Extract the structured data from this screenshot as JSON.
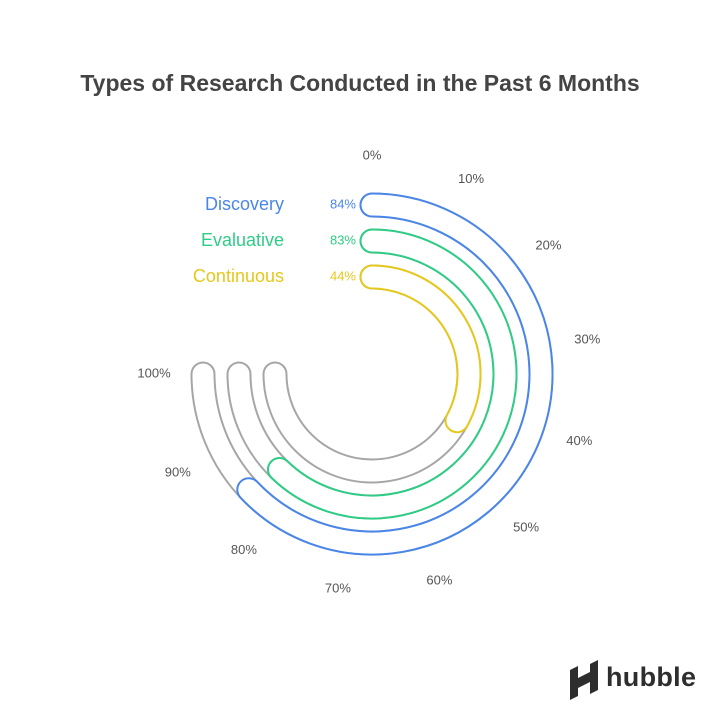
{
  "chart_data": {
    "type": "radial-bar",
    "title": "Types of Research Conducted in the Past 6 Months",
    "range": [
      0,
      100
    ],
    "ticks": [
      "0%",
      "10%",
      "20%",
      "30%",
      "40%",
      "50%",
      "60%",
      "70%",
      "80%",
      "90%",
      "100%"
    ],
    "series": [
      {
        "name": "Discovery",
        "value": 84,
        "label": "84%",
        "color": "#4a86e8"
      },
      {
        "name": "Evaluative",
        "value": 83,
        "label": "83%",
        "color": "#2ecc85"
      },
      {
        "name": "Continuous",
        "value": 44,
        "label": "44%",
        "color": "#e6c81c"
      }
    ],
    "track_color": "#a6a6a6"
  },
  "brand": {
    "name": "hubble",
    "logo_icon": "hubble-logo-icon"
  }
}
